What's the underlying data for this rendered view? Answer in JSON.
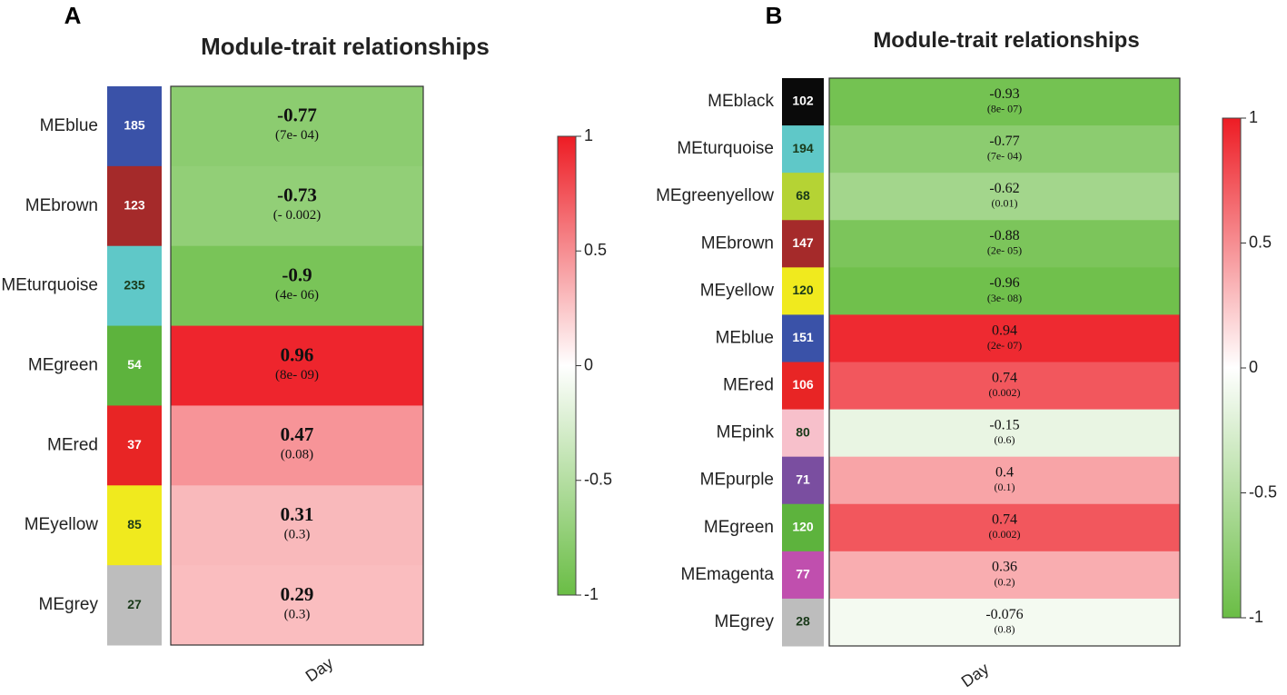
{
  "chart_data": [
    {
      "type": "heatmap",
      "panel": "A",
      "title": "Module-trait relationships",
      "xlabel": "Day",
      "modules": [
        {
          "label": "MEblue",
          "count": "185",
          "color": "#3a52a8",
          "value": -0.77,
          "pvalue": "(7e- 04)"
        },
        {
          "label": "MEbrown",
          "count": "123",
          "color": "#a52a2a",
          "value": -0.73,
          "pvalue": "(- 0.002)"
        },
        {
          "label": "MEturquoise",
          "count": "235",
          "color": "#5fc8c8",
          "value": -0.9,
          "pvalue": "(4e- 06)"
        },
        {
          "label": "MEgreen",
          "count": "54",
          "color": "#5db33d",
          "value": 0.96,
          "pvalue": "(8e- 09)"
        },
        {
          "label": "MEred",
          "count": "37",
          "color": "#e82525",
          "value": 0.47,
          "pvalue": "(0.08)"
        },
        {
          "label": "MEyellow",
          "count": "85",
          "color": "#f0ea1e",
          "value": 0.31,
          "pvalue": "(0.3)"
        },
        {
          "label": "MEgrey",
          "count": "27",
          "color": "#bdbdbd",
          "value": 0.29,
          "pvalue": "(0.3)"
        }
      ],
      "colorbar": {
        "ticks": [
          "1",
          "0.5",
          "0",
          "-0.5",
          "-1"
        ],
        "min": -1,
        "max": 1,
        "high_color": "#ed1c24",
        "mid_color": "#ffffff",
        "low_color": "#6abd45"
      }
    },
    {
      "type": "heatmap",
      "panel": "B",
      "title": "Module-trait relationships",
      "xlabel": "Day",
      "modules": [
        {
          "label": "MEblack",
          "count": "102",
          "color": "#0a0a0a",
          "value": -0.93,
          "pvalue": "(8e- 07)"
        },
        {
          "label": "MEturquoise",
          "count": "194",
          "color": "#5fc8c8",
          "value": -0.77,
          "pvalue": "(7e- 04)"
        },
        {
          "label": "MEgreenyellow",
          "count": "68",
          "color": "#b5d334",
          "value": -0.62,
          "pvalue": "(0.01)"
        },
        {
          "label": "MEbrown",
          "count": "147",
          "color": "#a52a2a",
          "value": -0.88,
          "pvalue": "(2e- 05)"
        },
        {
          "label": "MEyellow",
          "count": "120",
          "color": "#f0ea1e",
          "value": -0.96,
          "pvalue": "(3e- 08)"
        },
        {
          "label": "MEblue",
          "count": "151",
          "color": "#3a52a8",
          "value": 0.94,
          "pvalue": "(2e- 07)"
        },
        {
          "label": "MEred",
          "count": "106",
          "color": "#e82525",
          "value": 0.74,
          "pvalue": "(0.002)"
        },
        {
          "label": "MEpink",
          "count": "80",
          "color": "#f7c0cb",
          "value": -0.15,
          "pvalue": "(0.6)"
        },
        {
          "label": "MEpurple",
          "count": "71",
          "color": "#7a4ea0",
          "value": 0.4,
          "pvalue": "(0.1)"
        },
        {
          "label": "MEgreen",
          "count": "120",
          "color": "#5db33d",
          "value": 0.74,
          "pvalue": "(0.002)"
        },
        {
          "label": "MEmagenta",
          "count": "77",
          "color": "#c04fae",
          "value": 0.36,
          "pvalue": "(0.2)"
        },
        {
          "label": "MEgrey",
          "count": "28",
          "color": "#bdbdbd",
          "value": -0.076,
          "pvalue": "(0.8)"
        }
      ],
      "colorbar": {
        "ticks": [
          "1",
          "0.5",
          "0",
          "-0.5",
          "-1"
        ],
        "min": -1,
        "max": 1,
        "high_color": "#ed1c24",
        "mid_color": "#ffffff",
        "low_color": "#6abd45"
      }
    }
  ]
}
